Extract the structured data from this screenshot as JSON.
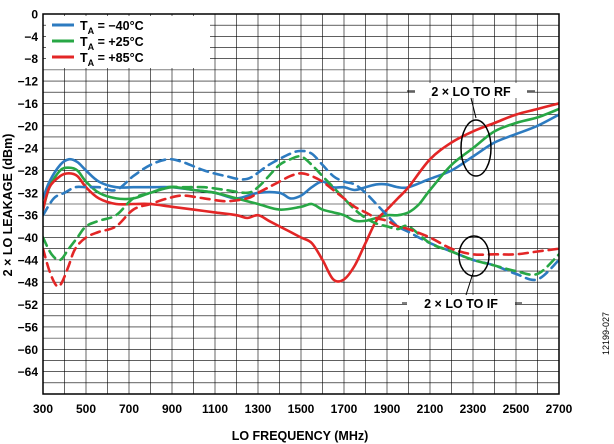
{
  "chart_data": {
    "type": "line",
    "xlabel": "LO FREQUENCY (MHz)",
    "ylabel": "2 × LO  LEAKAGE  (dBm)",
    "xlim": [
      300,
      2700
    ],
    "ylim": [
      -68,
      0
    ],
    "x_ticks": [
      "300",
      "500",
      "700",
      "900",
      "1100",
      "1300",
      "1500",
      "1700",
      "1900",
      "2100",
      "2300",
      "2500",
      "2700"
    ],
    "y_ticks": [
      "0",
      "−4",
      "−8",
      "−12",
      "−16",
      "−20",
      "−24",
      "−28",
      "−32",
      "−36",
      "−40",
      "−44",
      "−48",
      "−52",
      "−56",
      "−60",
      "−64"
    ],
    "grid": true,
    "legend_position": "top-left",
    "legend": [
      {
        "sub": "A",
        "rest": " = −40°C",
        "color": "#2d7bc0"
      },
      {
        "sub": "A",
        "rest": " = +25°C",
        "color": "#28a745"
      },
      {
        "sub": "A",
        "rest": " = +85°C",
        "color": "#e32626"
      }
    ],
    "legend_prefix": "T",
    "annotations": [
      "2 × LO TO RF",
      "2 × LO TO IF"
    ],
    "figure_id": "12199-027",
    "series": [
      {
        "label": "2 × LO TO RF, −40°C",
        "color": "#2d7bc0",
        "dash": false,
        "x": [
          300,
          330,
          380,
          420,
          460,
          500,
          560,
          640,
          720,
          800,
          900,
          1000,
          1100,
          1200,
          1300,
          1400,
          1450,
          1500,
          1550,
          1600,
          1650,
          1700,
          1750,
          1800,
          1850,
          1900,
          1950,
          2000,
          2100,
          2200,
          2300,
          2400,
          2500,
          2600,
          2700
        ],
        "y": [
          -33,
          -30,
          -27,
          -26,
          -26.5,
          -28,
          -30,
          -31,
          -31,
          -31,
          -31,
          -31.5,
          -32,
          -33,
          -32,
          -32,
          -33,
          -32.5,
          -31,
          -30,
          -31,
          -31,
          -31.5,
          -31,
          -30.5,
          -30.5,
          -31,
          -31,
          -29.5,
          -28,
          -25.5,
          -23,
          -21.5,
          -20,
          -18
        ]
      },
      {
        "label": "2 × LO TO RF, +25°C",
        "color": "#28a745",
        "dash": false,
        "x": [
          300,
          330,
          380,
          420,
          460,
          500,
          560,
          640,
          720,
          800,
          900,
          1000,
          1100,
          1200,
          1300,
          1400,
          1500,
          1550,
          1600,
          1650,
          1700,
          1750,
          1800,
          1850,
          1900,
          1950,
          2000,
          2050,
          2100,
          2200,
          2300,
          2400,
          2500,
          2600,
          2700
        ],
        "y": [
          -35,
          -31,
          -28,
          -27.5,
          -28,
          -30,
          -32,
          -33,
          -33,
          -32,
          -31,
          -31.5,
          -32,
          -33,
          -34,
          -35,
          -34.5,
          -34,
          -35,
          -35.5,
          -36,
          -37,
          -37,
          -36.5,
          -36,
          -36,
          -35.5,
          -34,
          -31.5,
          -27,
          -24,
          -21,
          -19.5,
          -18.5,
          -17
        ]
      },
      {
        "label": "2 × LO TO RF, +85°C",
        "color": "#e32626",
        "dash": false,
        "x": [
          300,
          330,
          380,
          420,
          460,
          500,
          560,
          640,
          720,
          800,
          900,
          1000,
          1100,
          1200,
          1250,
          1300,
          1350,
          1400,
          1450,
          1500,
          1550,
          1600,
          1650,
          1700,
          1750,
          1800,
          1850,
          1900,
          1950,
          2000,
          2100,
          2200,
          2300,
          2400,
          2500,
          2600,
          2700
        ],
        "y": [
          -35,
          -31,
          -29,
          -28.5,
          -29,
          -31,
          -33,
          -34,
          -34,
          -34,
          -34.5,
          -35,
          -35.5,
          -36,
          -36.5,
          -36,
          -37,
          -38,
          -39,
          -40,
          -41,
          -44,
          -47.5,
          -47.5,
          -45,
          -41,
          -37,
          -35,
          -33,
          -31,
          -26,
          -23,
          -21,
          -19.5,
          -18,
          -17,
          -16
        ]
      },
      {
        "label": "2 × LO TO IF, −40°C",
        "color": "#2d7bc0",
        "dash": true,
        "x": [
          300,
          350,
          400,
          450,
          500,
          560,
          640,
          720,
          800,
          880,
          950,
          1050,
          1150,
          1250,
          1350,
          1450,
          1500,
          1550,
          1600,
          1650,
          1700,
          1750,
          1800,
          1850,
          1900,
          1950,
          2000,
          2100,
          2200,
          2300,
          2400,
          2500,
          2600,
          2700
        ],
        "y": [
          -36,
          -33,
          -32,
          -31,
          -31,
          -31,
          -31.5,
          -29,
          -27,
          -26,
          -26.5,
          -28,
          -29,
          -29.5,
          -27,
          -25,
          -24.5,
          -25,
          -27,
          -29,
          -30,
          -30.5,
          -32,
          -34,
          -36,
          -38,
          -39,
          -41,
          -42.5,
          -44,
          -45,
          -46.5,
          -47.5,
          -44
        ]
      },
      {
        "label": "2 × LO TO IF, +25°C",
        "color": "#28a745",
        "dash": true,
        "x": [
          300,
          340,
          380,
          420,
          460,
          500,
          560,
          640,
          720,
          800,
          880,
          950,
          1050,
          1150,
          1250,
          1300,
          1350,
          1400,
          1450,
          1500,
          1550,
          1600,
          1650,
          1700,
          1750,
          1800,
          1850,
          1900,
          1950,
          2000,
          2100,
          2200,
          2300,
          2400,
          2500,
          2600,
          2700
        ],
        "y": [
          -40,
          -43,
          -44,
          -42,
          -40,
          -38,
          -37,
          -36,
          -33,
          -32,
          -31,
          -31,
          -31,
          -31.5,
          -32,
          -31,
          -29,
          -27,
          -26,
          -25.5,
          -27,
          -29,
          -31,
          -33,
          -35,
          -36.5,
          -37.5,
          -38,
          -38.5,
          -38,
          -41,
          -42.5,
          -44,
          -45,
          -46,
          -46.5,
          -43
        ]
      },
      {
        "label": "2 × LO TO IF, +85°C",
        "color": "#e32626",
        "dash": true,
        "x": [
          300,
          330,
          360,
          380,
          400,
          420,
          450,
          500,
          560,
          640,
          720,
          800,
          880,
          950,
          1050,
          1150,
          1250,
          1300,
          1350,
          1400,
          1450,
          1500,
          1550,
          1600,
          1650,
          1700,
          1750,
          1800,
          1850,
          1900,
          1950,
          2000,
          2100,
          2200,
          2300,
          2400,
          2500,
          2600,
          2700
        ],
        "y": [
          -42,
          -46,
          -48.5,
          -48.5,
          -47,
          -45,
          -42,
          -40,
          -39,
          -38,
          -35,
          -34,
          -33,
          -32.5,
          -33,
          -33.5,
          -33,
          -32,
          -31,
          -30,
          -29,
          -28.5,
          -29,
          -30,
          -31.5,
          -33,
          -34.5,
          -35.5,
          -36.5,
          -37,
          -38,
          -38.5,
          -40,
          -42,
          -43,
          -43,
          -43,
          -42.5,
          -42
        ]
      }
    ]
  }
}
